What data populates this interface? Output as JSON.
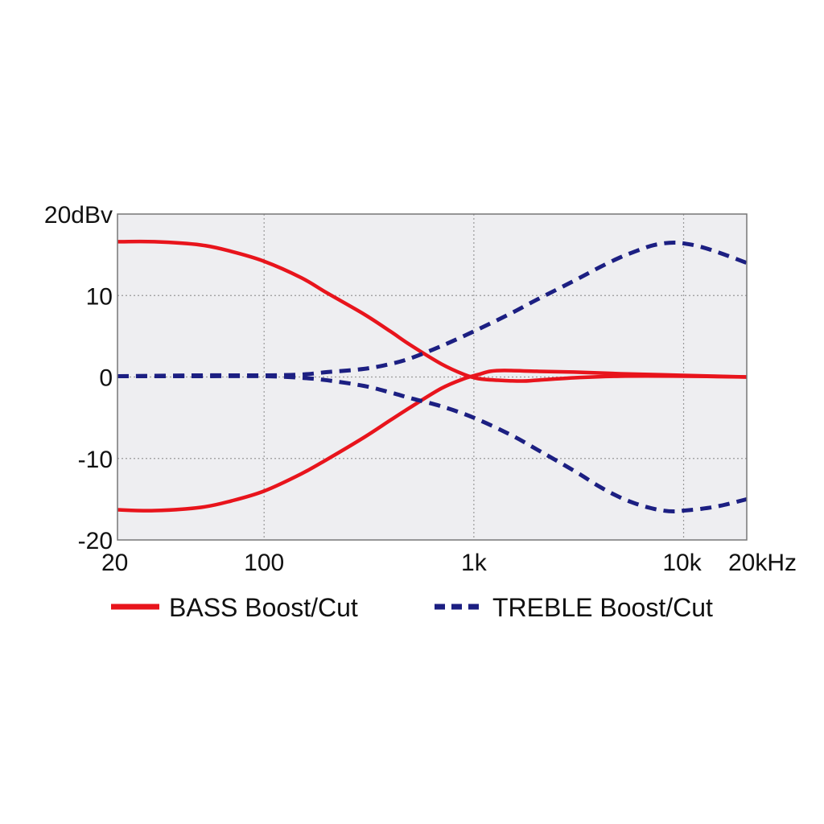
{
  "chart_data": {
    "type": "line",
    "x_scale": "log",
    "xlim": [
      20,
      20000
    ],
    "ylim": [
      -20,
      20
    ],
    "grid": true,
    "legend_position": "bottom",
    "x_ticks": [
      {
        "value": 20,
        "label": "20"
      },
      {
        "value": 100,
        "label": "100"
      },
      {
        "value": 1000,
        "label": "1k"
      },
      {
        "value": 10000,
        "label": "10k"
      },
      {
        "value": 20000,
        "label": "20kHz"
      }
    ],
    "y_ticks": [
      {
        "value": 20,
        "label": "20dBv"
      },
      {
        "value": 10,
        "label": "10"
      },
      {
        "value": 0,
        "label": "0"
      },
      {
        "value": -10,
        "label": "-10"
      },
      {
        "value": -20,
        "label": "-20"
      }
    ],
    "series": [
      {
        "name": "BASS Boost/Cut",
        "color": "#e8141c",
        "style": "solid",
        "curves": [
          [
            [
              20,
              16.6
            ],
            [
              30,
              16.6
            ],
            [
              50,
              16.2
            ],
            [
              70,
              15.4
            ],
            [
              100,
              14.2
            ],
            [
              150,
              12.2
            ],
            [
              200,
              10.3
            ],
            [
              300,
              7.7
            ],
            [
              400,
              5.6
            ],
            [
              500,
              3.9
            ],
            [
              700,
              1.6
            ],
            [
              900,
              0.3
            ],
            [
              1050,
              -0.2
            ],
            [
              1300,
              -0.4
            ],
            [
              1700,
              -0.5
            ],
            [
              2000,
              -0.4
            ],
            [
              3000,
              -0.1
            ],
            [
              5000,
              0.1
            ],
            [
              10000,
              0.1
            ],
            [
              20000,
              0
            ]
          ],
          [
            [
              20,
              -16.3
            ],
            [
              30,
              -16.4
            ],
            [
              50,
              -16
            ],
            [
              70,
              -15.2
            ],
            [
              100,
              -14
            ],
            [
              150,
              -11.9
            ],
            [
              200,
              -10.1
            ],
            [
              300,
              -7.4
            ],
            [
              400,
              -5.3
            ],
            [
              500,
              -3.7
            ],
            [
              700,
              -1.4
            ],
            [
              900,
              -0.2
            ],
            [
              1050,
              0.3
            ],
            [
              1200,
              0.7
            ],
            [
              1400,
              0.8
            ],
            [
              2000,
              0.7
            ],
            [
              3000,
              0.6
            ],
            [
              5000,
              0.4
            ],
            [
              10000,
              0.2
            ],
            [
              20000,
              0
            ]
          ]
        ]
      },
      {
        "name": "TREBLE Boost/Cut",
        "color": "#1c1f82",
        "style": "dashed",
        "curves": [
          [
            [
              20,
              0.1
            ],
            [
              50,
              0.2
            ],
            [
              100,
              0.2
            ],
            [
              150,
              0.3
            ],
            [
              200,
              0.6
            ],
            [
              300,
              1
            ],
            [
              400,
              1.6
            ],
            [
              500,
              2.3
            ],
            [
              700,
              3.8
            ],
            [
              1000,
              5.6
            ],
            [
              1500,
              7.8
            ],
            [
              2000,
              9.5
            ],
            [
              3000,
              11.8
            ],
            [
              4000,
              13.5
            ],
            [
              5000,
              14.7
            ],
            [
              6000,
              15.5
            ],
            [
              7000,
              16.1
            ],
            [
              8000,
              16.4
            ],
            [
              9000,
              16.5
            ],
            [
              10000,
              16.4
            ],
            [
              12000,
              16
            ],
            [
              15000,
              15.2
            ],
            [
              20000,
              14
            ]
          ],
          [
            [
              20,
              0.1
            ],
            [
              50,
              0.1
            ],
            [
              100,
              0.1
            ],
            [
              150,
              -0.1
            ],
            [
              200,
              -0.4
            ],
            [
              300,
              -1.1
            ],
            [
              400,
              -1.9
            ],
            [
              500,
              -2.6
            ],
            [
              700,
              -3.6
            ],
            [
              1000,
              -5
            ],
            [
              1500,
              -7.1
            ],
            [
              2000,
              -8.9
            ],
            [
              3000,
              -11.5
            ],
            [
              4000,
              -13.5
            ],
            [
              5000,
              -14.8
            ],
            [
              6000,
              -15.6
            ],
            [
              7000,
              -16.1
            ],
            [
              8000,
              -16.4
            ],
            [
              9000,
              -16.5
            ],
            [
              10000,
              -16.4
            ],
            [
              12000,
              -16.2
            ],
            [
              15000,
              -15.8
            ],
            [
              20000,
              -15
            ]
          ]
        ]
      }
    ]
  }
}
